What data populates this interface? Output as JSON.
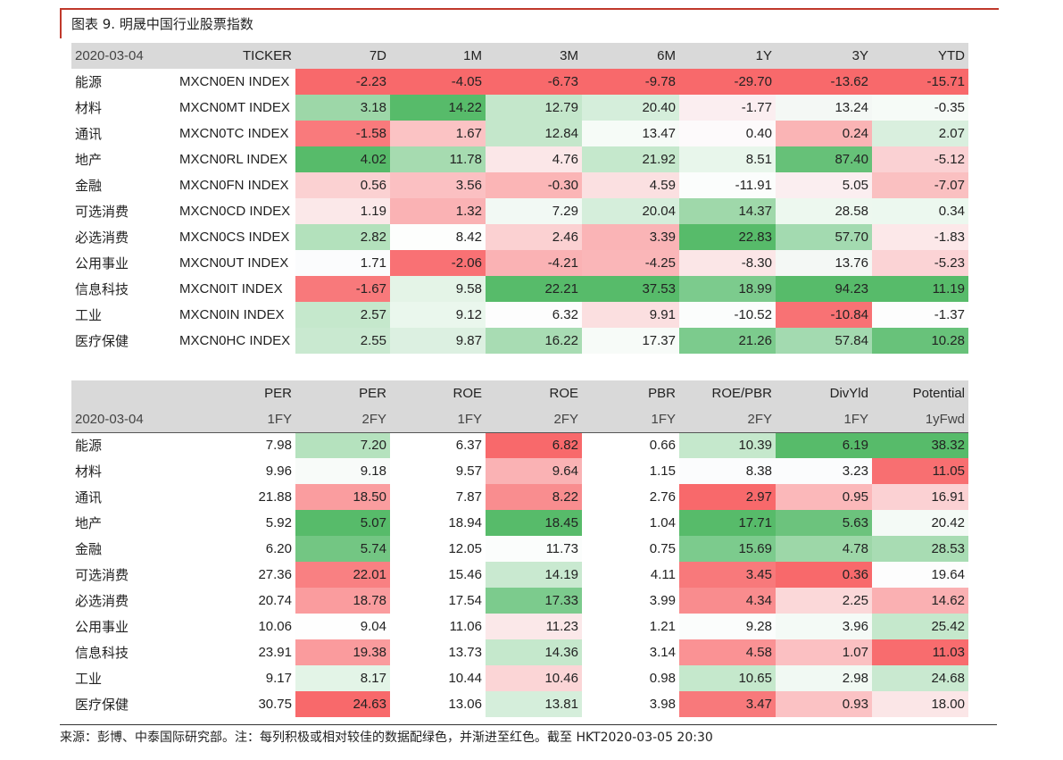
{
  "title": "图表 9.  明晟中国行业股票指数",
  "footer": "来源：彭博、中泰国际研究部。注：每列积极或相对较佳的数据配绿色，并渐进至红色。截至 HKT2020-03-05 20:30",
  "colors": {
    "green_strong": "#57bb6a",
    "red_strong": "#f8696b",
    "white": "#ffffff",
    "header_gray": "#d9d9d9",
    "title_rule": "#c0392b"
  },
  "table1": {
    "date": "2020-03-04",
    "headers": [
      "TICKER",
      "7D",
      "1M",
      "3M",
      "6M",
      "1Y",
      "3Y",
      "YTD"
    ],
    "rows": [
      {
        "name": "能源",
        "ticker": "MXCN0EN INDEX",
        "values": [
          "-2.23",
          "-4.05",
          "-6.73",
          "-9.78",
          "-29.70",
          "-13.62",
          "-15.71"
        ]
      },
      {
        "name": "材料",
        "ticker": "MXCN0MT INDEX",
        "values": [
          "3.18",
          "14.22",
          "12.79",
          "20.40",
          "-1.77",
          "13.24",
          "-0.35"
        ]
      },
      {
        "name": "通讯",
        "ticker": "MXCN0TC INDEX",
        "values": [
          "-1.58",
          "1.67",
          "12.84",
          "13.47",
          "0.40",
          "0.24",
          "2.07"
        ]
      },
      {
        "name": "地产",
        "ticker": "MXCN0RL INDEX",
        "values": [
          "4.02",
          "11.78",
          "4.76",
          "21.92",
          "8.51",
          "87.40",
          "-5.12"
        ]
      },
      {
        "name": "金融",
        "ticker": "MXCN0FN INDEX",
        "values": [
          "0.56",
          "3.56",
          "-0.30",
          "4.59",
          "-11.91",
          "5.05",
          "-7.07"
        ]
      },
      {
        "name": "可选消费",
        "ticker": "MXCN0CD INDEX",
        "values": [
          "1.19",
          "1.32",
          "7.29",
          "20.04",
          "14.37",
          "28.58",
          "0.34"
        ]
      },
      {
        "name": "必选消费",
        "ticker": "MXCN0CS INDEX",
        "values": [
          "2.82",
          "8.42",
          "2.46",
          "3.39",
          "22.83",
          "57.70",
          "-1.83"
        ]
      },
      {
        "name": "公用事业",
        "ticker": "MXCN0UT INDEX",
        "values": [
          "1.71",
          "-2.06",
          "-4.21",
          "-4.25",
          "-8.30",
          "13.76",
          "-5.23"
        ]
      },
      {
        "name": "信息科技",
        "ticker": "MXCN0IT INDEX",
        "values": [
          "-1.67",
          "9.58",
          "22.21",
          "37.53",
          "18.99",
          "94.23",
          "11.19"
        ]
      },
      {
        "name": "工业",
        "ticker": "MXCN0IN INDEX",
        "values": [
          "2.57",
          "9.12",
          "6.32",
          "9.91",
          "-10.52",
          "-10.84",
          "-1.37"
        ]
      },
      {
        "name": "医疗保健",
        "ticker": "MXCN0HC INDEX",
        "values": [
          "2.55",
          "9.87",
          "16.22",
          "17.37",
          "21.26",
          "57.84",
          "10.28"
        ]
      }
    ],
    "colors": [
      [
        "#f8696b",
        "#f8696b",
        "#f8696b",
        "#f8696b",
        "#f8696b",
        "#f8696b",
        "#f8696b"
      ],
      [
        "#9dd7a8",
        "#57bb6a",
        "#c4e7cb",
        "#d5eedb",
        "#fbeef0",
        "#f4f8f5",
        "#f6fbf7"
      ],
      [
        "#f97a7c",
        "#fbc3c4",
        "#c4e7cb",
        "#f6fbf7",
        "#fdfafb",
        "#fab4b5",
        "#d9efde"
      ],
      [
        "#57bb6a",
        "#a6dbb0",
        "#fbe7e8",
        "#c5e8cc",
        "#e8f6eb",
        "#66c178",
        "#fad1d3"
      ],
      [
        "#fbd1d2",
        "#fbc0c2",
        "#fbb5b6",
        "#fbe0e1",
        "#fbfdfc",
        "#fbeef0",
        "#fac0c1"
      ],
      [
        "#fbe8e9",
        "#fab2b4",
        "#f2f9f4",
        "#d5eedb",
        "#9fd8aa",
        "#edf8ef",
        "#ecf8ef"
      ],
      [
        "#b3e1bc",
        "#fdfefd",
        "#fbd1d2",
        "#fab4b6",
        "#57bb6a",
        "#a3dab0",
        "#fce8e9"
      ],
      [
        "#fbfcfd",
        "#f97174",
        "#fab2b4",
        "#fab6b8",
        "#fbe6e7",
        "#f4f8f5",
        "#fbd3d5"
      ],
      [
        "#f8797b",
        "#e4f4e7",
        "#57bb6a",
        "#57bb6a",
        "#7ccb8d",
        "#57bb6a",
        "#57bb6a"
      ],
      [
        "#c5e8cc",
        "#eaf7ed",
        "#fdfdfd",
        "#fbdfe0",
        "#fbfdfc",
        "#f87274",
        "#fdfdfd"
      ],
      [
        "#c9e9d0",
        "#dcf0e1",
        "#a8dcb3",
        "#f7fbf8",
        "#7ccb8d",
        "#a3dab0",
        "#68c27a"
      ]
    ]
  },
  "table2": {
    "date": "2020-03-04",
    "headers_top": [
      "PER",
      "PER",
      "ROE",
      "ROE",
      "PBR",
      "ROE/PBR",
      "DivYld",
      "Potential"
    ],
    "headers_bottom": [
      "1FY",
      "2FY",
      "1FY",
      "2FY",
      "1FY",
      "2FY",
      "1FY",
      "1yFwd"
    ],
    "rows": [
      {
        "name": "能源",
        "values": [
          "7.98",
          "7.20",
          "6.37",
          "6.82",
          "0.66",
          "10.39",
          "6.19",
          "38.32"
        ]
      },
      {
        "name": "材料",
        "values": [
          "9.96",
          "9.18",
          "9.57",
          "9.64",
          "1.15",
          "8.38",
          "3.23",
          "11.05"
        ]
      },
      {
        "name": "通讯",
        "values": [
          "21.88",
          "18.50",
          "7.87",
          "8.22",
          "2.76",
          "2.97",
          "0.95",
          "16.91"
        ]
      },
      {
        "name": "地产",
        "values": [
          "5.92",
          "5.07",
          "18.94",
          "18.45",
          "1.04",
          "17.71",
          "5.63",
          "20.42"
        ]
      },
      {
        "name": "金融",
        "values": [
          "6.20",
          "5.74",
          "12.05",
          "11.73",
          "0.75",
          "15.69",
          "4.78",
          "28.53"
        ]
      },
      {
        "name": "可选消费",
        "values": [
          "27.36",
          "22.01",
          "15.46",
          "14.19",
          "4.11",
          "3.45",
          "0.36",
          "19.64"
        ]
      },
      {
        "name": "必选消费",
        "values": [
          "20.74",
          "18.78",
          "17.54",
          "17.33",
          "3.99",
          "4.34",
          "2.25",
          "14.62"
        ]
      },
      {
        "name": "公用事业",
        "values": [
          "10.06",
          "9.04",
          "11.06",
          "11.23",
          "1.21",
          "9.28",
          "3.96",
          "25.42"
        ]
      },
      {
        "name": "信息科技",
        "values": [
          "23.91",
          "19.38",
          "13.73",
          "14.36",
          "3.14",
          "4.58",
          "1.07",
          "11.03"
        ]
      },
      {
        "name": "工业",
        "values": [
          "9.17",
          "8.17",
          "10.44",
          "10.46",
          "0.98",
          "10.65",
          "2.98",
          "24.68"
        ]
      },
      {
        "name": "医疗保健",
        "values": [
          "30.75",
          "24.63",
          "13.06",
          "13.81",
          "3.98",
          "3.47",
          "0.93",
          "18.00"
        ]
      }
    ],
    "colors": [
      [
        "#ffffff",
        "#b5e2be",
        "#ffffff",
        "#f8696b",
        "#ffffff",
        "#c5e8cc",
        "#57bb6a",
        "#57bb6a"
      ],
      [
        "#ffffff",
        "#f8fbf9",
        "#ffffff",
        "#fab2b4",
        "#ffffff",
        "#fbfcfd",
        "#fbfcfd",
        "#f86f71"
      ],
      [
        "#ffffff",
        "#fa9d9f",
        "#ffffff",
        "#f98d8f",
        "#ffffff",
        "#f8696b",
        "#fbb8ba",
        "#fbd1d3"
      ],
      [
        "#ffffff",
        "#57bb6a",
        "#ffffff",
        "#57bb6a",
        "#ffffff",
        "#57bb6a",
        "#6cc37d",
        "#f4faf6"
      ],
      [
        "#ffffff",
        "#73c683",
        "#ffffff",
        "#fbfdfc",
        "#ffffff",
        "#7ccb8d",
        "#9dd7a8",
        "#a8dcb3"
      ],
      [
        "#ffffff",
        "#f98082",
        "#ffffff",
        "#c9e9d0",
        "#ffffff",
        "#f8797b",
        "#f8696b",
        "#fdfdfd"
      ],
      [
        "#ffffff",
        "#fa9c9e",
        "#ffffff",
        "#7ccb8d",
        "#ffffff",
        "#f98c8e",
        "#fbd8d9",
        "#fab0b2"
      ],
      [
        "#ffffff",
        "#fefefe",
        "#ffffff",
        "#fbe8e9",
        "#ffffff",
        "#fbfdfc",
        "#f4faf6",
        "#c5e8cc"
      ],
      [
        "#ffffff",
        "#fa9b9d",
        "#ffffff",
        "#c5e8cc",
        "#ffffff",
        "#fa9294",
        "#fbc0c2",
        "#f86c6e"
      ],
      [
        "#ffffff",
        "#e3f4e7",
        "#ffffff",
        "#fbd5d6",
        "#ffffff",
        "#c5e8cc",
        "#f1f9f3",
        "#c9e9d0"
      ],
      [
        "#ffffff",
        "#f8696b",
        "#ffffff",
        "#d5eedb",
        "#ffffff",
        "#f8797b",
        "#fbc2c4",
        "#fbe6e7"
      ]
    ]
  }
}
